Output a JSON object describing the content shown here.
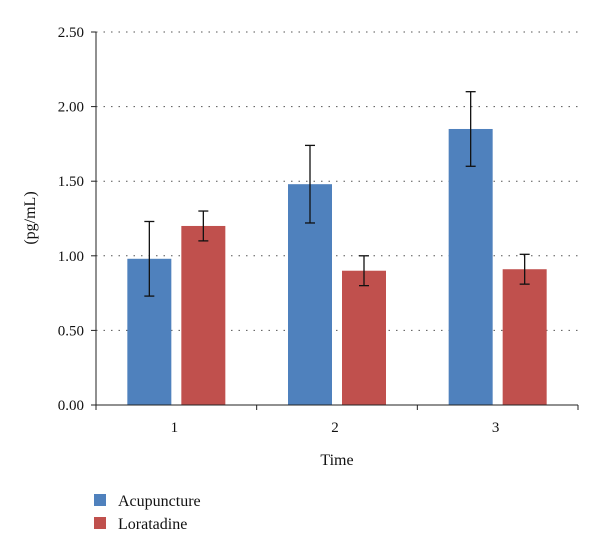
{
  "chart_data": {
    "type": "bar",
    "categories": [
      "1",
      "2",
      "3"
    ],
    "xlabel": "Time",
    "ylabel": "(pg/mL)",
    "ylim": [
      0,
      2.5
    ],
    "yticks": [
      "0.00",
      "0.50",
      "1.00",
      "1.50",
      "2.00",
      "2.50"
    ],
    "grid": true,
    "legend_position": "bottom-left",
    "series": [
      {
        "name": "Acupuncture",
        "color": "#4f81bd",
        "values": [
          0.98,
          1.48,
          1.85
        ],
        "errors": [
          0.25,
          0.26,
          0.25
        ]
      },
      {
        "name": "Loratadine",
        "color": "#c0504d",
        "values": [
          1.2,
          0.9,
          0.91
        ],
        "errors": [
          0.1,
          0.1,
          0.1
        ]
      }
    ]
  }
}
